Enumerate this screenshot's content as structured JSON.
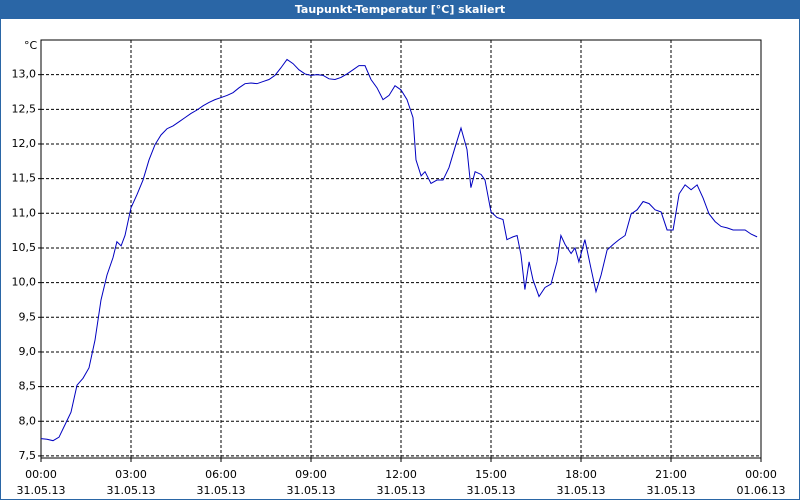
{
  "chart_data": {
    "type": "line",
    "title": "Taupunkt-Temperatur [°C] skaliert",
    "y_unit": "°C",
    "x": [
      0,
      0.2,
      0.4,
      0.6,
      0.8,
      1.0,
      1.2,
      1.4,
      1.6,
      1.8,
      2.0,
      2.2,
      2.4,
      2.53,
      2.67,
      2.8,
      3.0,
      3.2,
      3.4,
      3.6,
      3.8,
      4.0,
      4.2,
      4.4,
      4.6,
      4.8,
      5.0,
      5.2,
      5.4,
      5.6,
      5.8,
      6.0,
      6.2,
      6.4,
      6.6,
      6.8,
      7.0,
      7.2,
      7.4,
      7.6,
      7.8,
      8.0,
      8.2,
      8.4,
      8.6,
      8.8,
      9.0,
      9.2,
      9.4,
      9.6,
      9.8,
      10.0,
      10.2,
      10.4,
      10.6,
      10.8,
      11.0,
      11.2,
      11.4,
      11.6,
      11.8,
      12.0,
      12.2,
      12.4,
      12.5,
      12.67,
      12.8,
      13.0,
      13.2,
      13.4,
      13.6,
      13.8,
      14.0,
      14.2,
      14.33,
      14.47,
      14.67,
      14.8,
      15.0,
      15.2,
      15.4,
      15.53,
      15.73,
      15.87,
      16.0,
      16.13,
      16.27,
      16.4,
      16.6,
      16.8,
      17.0,
      17.2,
      17.33,
      17.47,
      17.67,
      17.8,
      17.93,
      18.13,
      18.33,
      18.5,
      18.67,
      18.87,
      19.07,
      19.27,
      19.47,
      19.67,
      19.87,
      20.07,
      20.27,
      20.47,
      20.67,
      20.87,
      21.07,
      21.27,
      21.47,
      21.67,
      21.87,
      22.07,
      22.27,
      22.47,
      22.67,
      22.87,
      23.07,
      23.27,
      23.47,
      23.67,
      23.87
    ],
    "series": [
      {
        "name": "Taupunkt-Temperatur",
        "color": "#0000c0",
        "values": [
          7.75,
          7.74,
          7.72,
          7.77,
          7.95,
          8.13,
          8.52,
          8.62,
          8.77,
          9.17,
          9.75,
          10.11,
          10.36,
          10.59,
          10.53,
          10.68,
          11.08,
          11.27,
          11.48,
          11.77,
          11.99,
          12.13,
          12.22,
          12.26,
          12.32,
          12.38,
          12.44,
          12.49,
          12.55,
          12.6,
          12.64,
          12.67,
          12.7,
          12.74,
          12.81,
          12.87,
          12.88,
          12.87,
          12.9,
          12.93,
          12.99,
          13.1,
          13.22,
          13.16,
          13.07,
          13.01,
          12.99,
          13.0,
          12.99,
          12.94,
          12.93,
          12.96,
          13.01,
          13.07,
          13.13,
          13.13,
          12.93,
          12.81,
          12.64,
          12.7,
          12.84,
          12.78,
          12.64,
          12.38,
          11.77,
          11.54,
          11.6,
          11.43,
          11.48,
          11.48,
          11.66,
          11.95,
          12.23,
          11.92,
          11.37,
          11.6,
          11.56,
          11.48,
          11.02,
          10.94,
          10.91,
          10.62,
          10.66,
          10.68,
          10.4,
          9.9,
          10.3,
          10.04,
          9.8,
          9.93,
          9.98,
          10.3,
          10.68,
          10.55,
          10.42,
          10.5,
          10.3,
          10.62,
          10.21,
          9.87,
          10.11,
          10.47,
          10.55,
          10.62,
          10.68,
          10.99,
          11.05,
          11.17,
          11.14,
          11.05,
          11.02,
          10.76,
          10.76,
          11.28,
          11.41,
          11.34,
          11.41,
          11.22,
          10.99,
          10.88,
          10.81,
          10.79,
          10.76,
          10.76,
          10.76,
          10.7,
          10.66
        ]
      }
    ],
    "xlim": [
      0,
      24
    ],
    "xticks": [
      {
        "value": 0,
        "label": "00:00"
      },
      {
        "value": 3,
        "label": "03:00"
      },
      {
        "value": 6,
        "label": "06:00"
      },
      {
        "value": 9,
        "label": "09:00"
      },
      {
        "value": 12,
        "label": "12:00"
      },
      {
        "value": 15,
        "label": "15:00"
      },
      {
        "value": 18,
        "label": "18:00"
      },
      {
        "value": 21,
        "label": "21:00"
      },
      {
        "value": 24,
        "label": "00:00"
      }
    ],
    "xtick_dates": [
      "31.05.13",
      "31.05.13",
      "31.05.13",
      "31.05.13",
      "31.05.13",
      "31.05.13",
      "31.05.13",
      "31.05.13",
      "01.06.13"
    ],
    "ylim": [
      7.47,
      13.5
    ],
    "yticks": [
      {
        "value": 7.5,
        "label": "7,5"
      },
      {
        "value": 8,
        "label": "8,0"
      },
      {
        "value": 8.5,
        "label": "8,5"
      },
      {
        "value": 9,
        "label": "9,0"
      },
      {
        "value": 9.5,
        "label": "9,5"
      },
      {
        "value": 10,
        "label": "10,0"
      },
      {
        "value": 10.5,
        "label": "10,5"
      },
      {
        "value": 11,
        "label": "11,0"
      },
      {
        "value": 11.5,
        "label": "11,5"
      },
      {
        "value": 12,
        "label": "12,0"
      },
      {
        "value": 12.5,
        "label": "12,5"
      },
      {
        "value": 13,
        "label": "13,0"
      }
    ],
    "grid": true
  }
}
